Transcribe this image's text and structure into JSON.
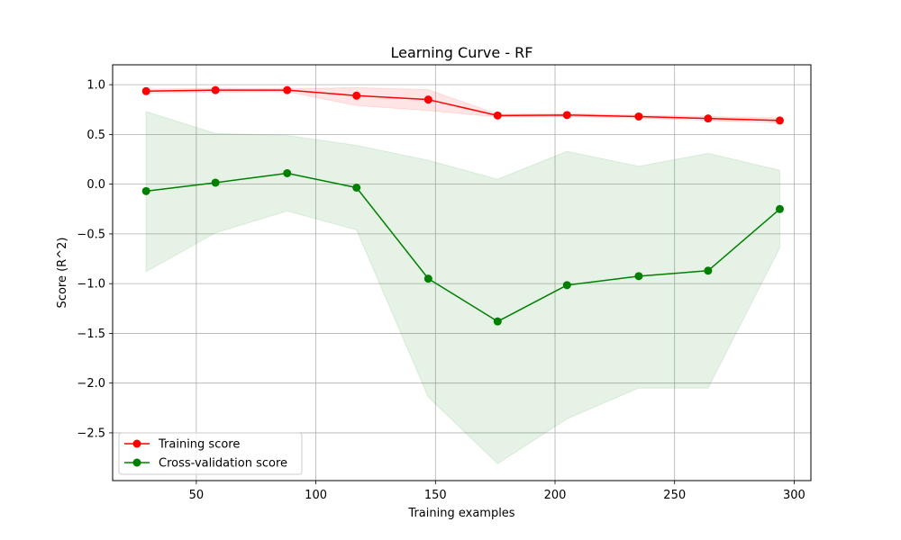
{
  "chart_data": {
    "type": "line",
    "title": "Learning Curve - RF",
    "xlabel": "Training examples",
    "ylabel": "Score (R^2)",
    "xlim": [
      15,
      307
    ],
    "ylim": [
      -2.98,
      1.2
    ],
    "xticks": [
      50,
      100,
      150,
      200,
      250,
      300
    ],
    "yticks": [
      1.0,
      0.5,
      0.0,
      -0.5,
      -1.0,
      -1.5,
      -2.0,
      -2.5
    ],
    "xtick_labels": [
      "50",
      "100",
      "150",
      "200",
      "250",
      "300"
    ],
    "ytick_labels": [
      "1.0",
      "0.5",
      "0.0",
      "−0.5",
      "−1.0",
      "−1.5",
      "−2.0",
      "−2.5"
    ],
    "grid": true,
    "legend_position": "lower-left",
    "x": [
      29,
      58,
      88,
      117,
      147,
      176,
      205,
      235,
      264,
      294
    ],
    "series": [
      {
        "name": "Training score",
        "color": "#ff0000",
        "values": [
          0.935,
          0.945,
          0.945,
          0.89,
          0.85,
          0.69,
          0.695,
          0.68,
          0.66,
          0.64
        ],
        "band_upper": [
          0.955,
          0.965,
          0.96,
          0.97,
          0.95,
          0.705,
          0.71,
          0.695,
          0.68,
          0.665
        ],
        "band_lower": [
          0.915,
          0.925,
          0.93,
          0.79,
          0.74,
          0.675,
          0.68,
          0.665,
          0.64,
          0.615
        ]
      },
      {
        "name": "Cross-validation score",
        "color": "#008000",
        "values": [
          -0.07,
          0.015,
          0.11,
          -0.035,
          -0.95,
          -1.38,
          -1.015,
          -0.925,
          -0.87,
          -0.25
        ],
        "band_upper": [
          0.73,
          0.51,
          0.49,
          0.39,
          0.24,
          0.05,
          0.33,
          0.18,
          0.31,
          0.14
        ],
        "band_lower": [
          -0.88,
          -0.49,
          -0.27,
          -0.46,
          -2.14,
          -2.81,
          -2.36,
          -2.05,
          -2.05,
          -0.64
        ]
      }
    ]
  }
}
